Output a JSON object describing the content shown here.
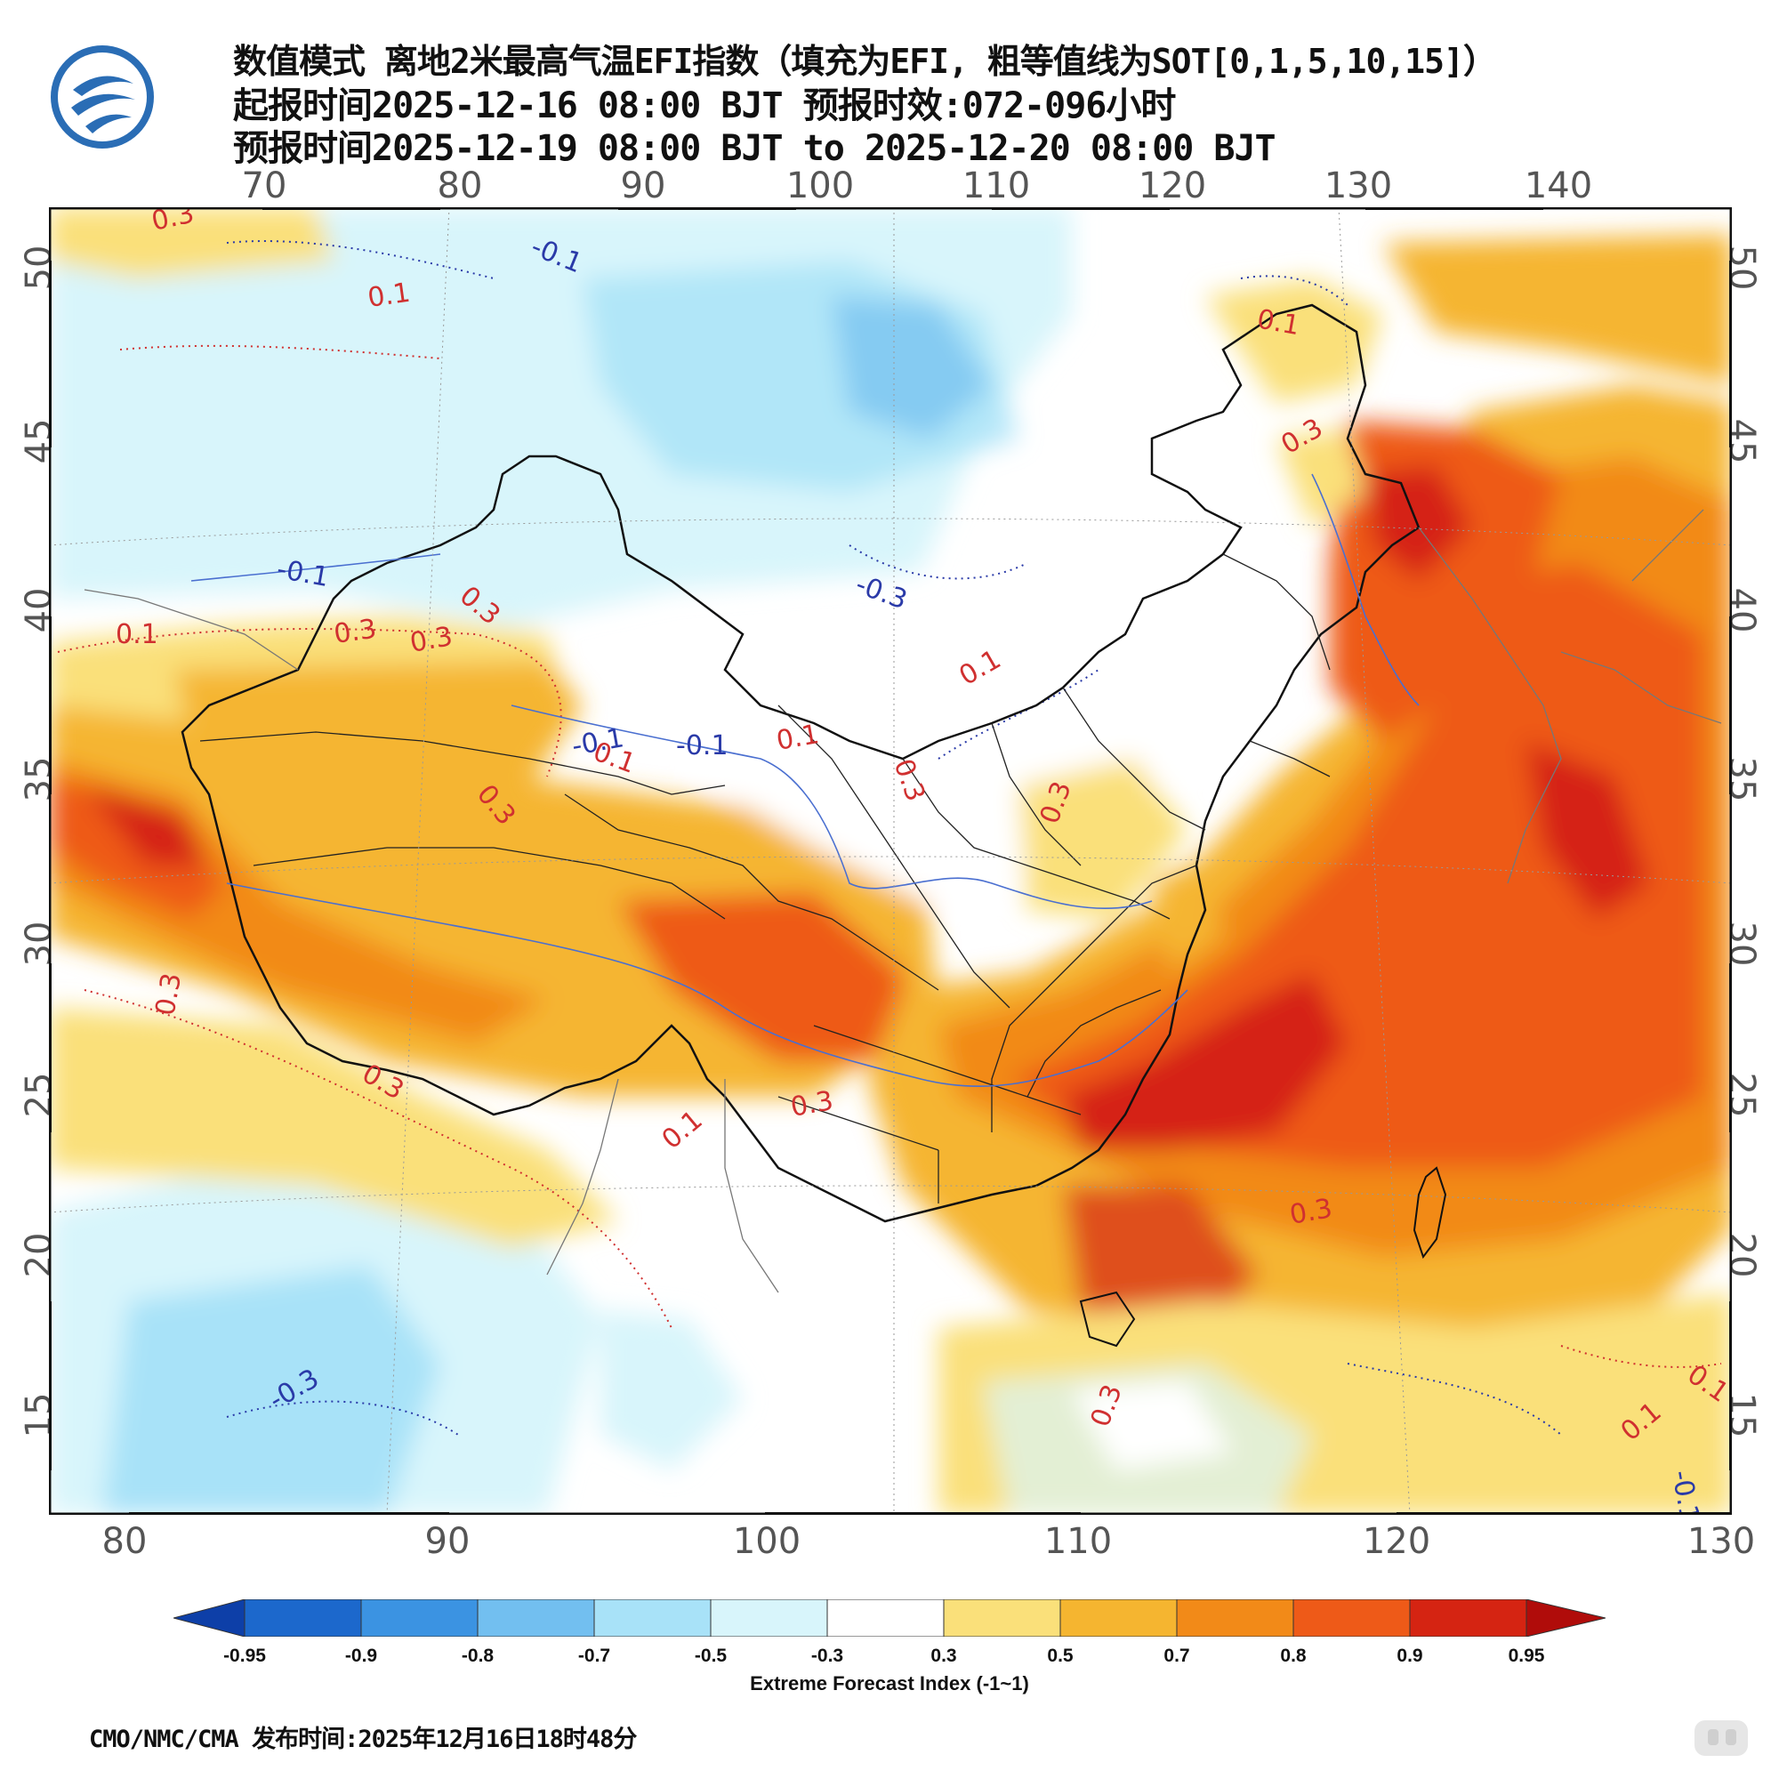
{
  "title": {
    "line1": "数值模式 离地2米最高气温EFI指数（填充为EFI, 粗等值线为SOT[0,1,5,10,15]）",
    "line2": "起报时间2025-12-16 08:00 BJT 预报时效:072-096小时",
    "line3": "预报时间2025-12-19 08:00 BJT to 2025-12-20 08:00 BJT"
  },
  "map": {
    "top_lon_labels": [
      "70",
      "80",
      "90",
      "100",
      "110",
      "120",
      "130",
      "140"
    ],
    "bottom_lon_labels": [
      "80",
      "90",
      "100",
      "110",
      "120",
      "130"
    ],
    "lat_labels": [
      "50",
      "45",
      "40",
      "35",
      "30",
      "25",
      "20",
      "15"
    ],
    "contour_labels": [
      {
        "text": "0.3",
        "color": "#d03030"
      },
      {
        "text": "0.1",
        "color": "#d03030"
      },
      {
        "text": "-0.1",
        "color": "#2a3aa8"
      },
      {
        "text": "0.1",
        "color": "#d03030"
      },
      {
        "text": "0.3",
        "color": "#d03030"
      },
      {
        "text": "-0.1",
        "color": "#2a3aa8"
      },
      {
        "text": "0.3",
        "color": "#d03030"
      },
      {
        "text": "0.3",
        "color": "#d03030"
      },
      {
        "text": "0.3",
        "color": "#d03030"
      },
      {
        "text": "-0.3",
        "color": "#2a3aa8"
      },
      {
        "text": "0.1",
        "color": "#d03030"
      },
      {
        "text": "-0.1",
        "color": "#2a3aa8"
      },
      {
        "text": "0.1",
        "color": "#d03030"
      },
      {
        "text": "-0.1",
        "color": "#2a3aa8"
      },
      {
        "text": "0.1",
        "color": "#d03030"
      },
      {
        "text": "0.3",
        "color": "#d03030"
      },
      {
        "text": "0.3",
        "color": "#d03030"
      },
      {
        "text": "0.3",
        "color": "#d03030"
      },
      {
        "text": "0.1",
        "color": "#d03030"
      },
      {
        "text": "0.3",
        "color": "#d03030"
      },
      {
        "text": "0.3",
        "color": "#d03030"
      },
      {
        "text": "0.1",
        "color": "#d03030"
      },
      {
        "text": "-0.3",
        "color": "#2a3aa8"
      },
      {
        "text": "0.3",
        "color": "#d03030"
      },
      {
        "text": "0.3",
        "color": "#d03030"
      },
      {
        "text": "0.3",
        "color": "#d03030"
      },
      {
        "text": "0.1",
        "color": "#d03030"
      },
      {
        "text": "0.1",
        "color": "#d03030"
      },
      {
        "text": "-0.1",
        "color": "#2a3aa8"
      }
    ]
  },
  "colorbar": {
    "labels": [
      "-0.95",
      "-0.9",
      "-0.8",
      "-0.7",
      "-0.5",
      "-0.3",
      "0.3",
      "0.5",
      "0.7",
      "0.8",
      "0.9",
      "0.95"
    ],
    "colors": [
      "#0d3fa8",
      "#1c68cc",
      "#3b93e2",
      "#72bff0",
      "#a8e2f8",
      "#d8f5fb",
      "#ffffff",
      "#fae07a",
      "#f5b530",
      "#f28a18",
      "#ee5a18",
      "#d52412",
      "#b00c0a"
    ],
    "title": "Extreme Forecast Index (-1~1)"
  },
  "footer": "CMO/NMC/CMA 发布时间:2025年12月16日18时48分"
}
